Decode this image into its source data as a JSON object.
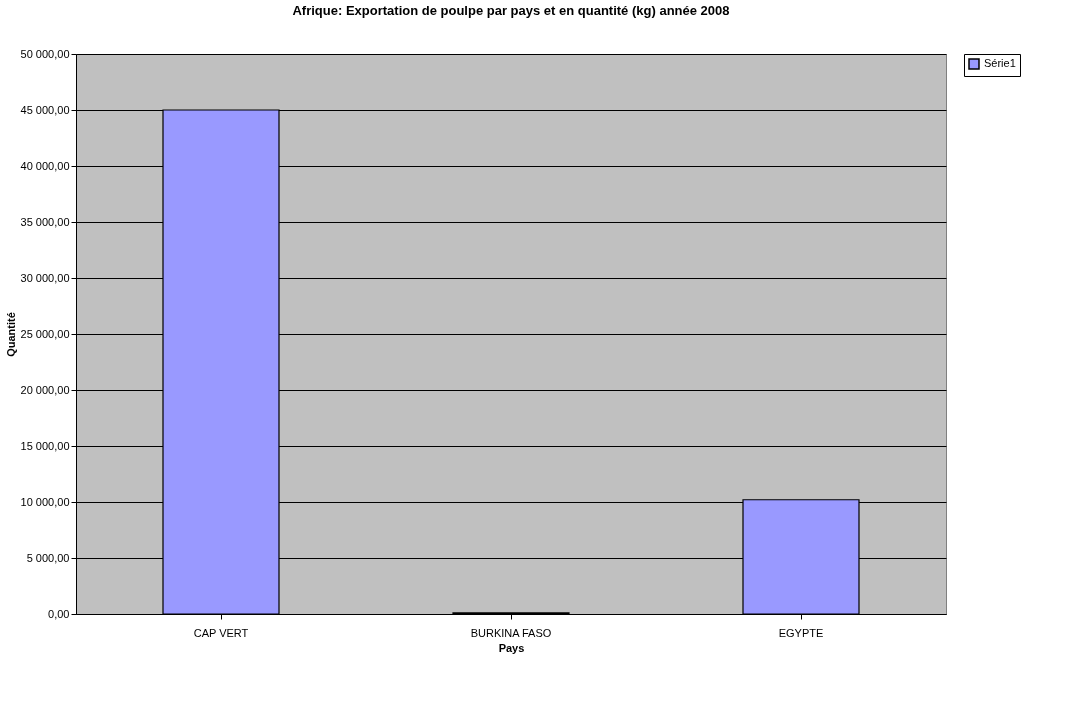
{
  "chart_data": {
    "type": "bar",
    "title": "Afrique: Exportation de poulpe par pays et en quantité (kg) année 2008",
    "xlabel": "Pays",
    "ylabel": "Quantité",
    "categories": [
      "CAP VERT",
      "BURKINA FASO",
      "EGYPTE"
    ],
    "series": [
      {
        "name": "Série1",
        "color": "#9999ff",
        "values": [
          45000,
          100,
          10200
        ]
      }
    ],
    "ylim": [
      0,
      50000
    ],
    "yticks": [
      {
        "value": 0,
        "label": "0,00"
      },
      {
        "value": 5000,
        "label": "5 000,00"
      },
      {
        "value": 10000,
        "label": "10 000,00"
      },
      {
        "value": 15000,
        "label": "15 000,00"
      },
      {
        "value": 20000,
        "label": "20 000,00"
      },
      {
        "value": 25000,
        "label": "25 000,00"
      },
      {
        "value": 30000,
        "label": "30 000,00"
      },
      {
        "value": 35000,
        "label": "35 000,00"
      },
      {
        "value": 40000,
        "label": "40 000,00"
      },
      {
        "value": 45000,
        "label": "45 000,00"
      },
      {
        "value": 50000,
        "label": "50 000,00"
      }
    ],
    "grid": "y",
    "legend": "right"
  }
}
